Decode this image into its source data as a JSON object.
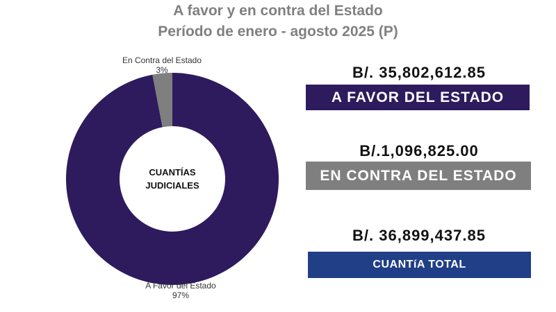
{
  "title": "A favor y en contra del Estado",
  "subtitle": "Período de enero - agosto 2025 (P)",
  "center_label_line1": "CUANTÍAS",
  "center_label_line2": "JUDICIALES",
  "cards": {
    "favor": {
      "amount": "B/. 35,802,612.85",
      "label": "A FAVOR DEL ESTADO"
    },
    "contra": {
      "amount": "B/.1,096,825.00",
      "label": "EN CONTRA DEL ESTADO"
    },
    "total": {
      "amount": "B/. 36,899,437.85",
      "label": "CUANTíA TOTAL"
    }
  },
  "colors": {
    "favor": "#2d1b5e",
    "contra": "#7f7f7f",
    "total": "#213f86"
  },
  "chart_data": {
    "type": "pie",
    "title": "A favor y en contra del Estado",
    "subtitle": "Período de enero - agosto 2025 (P)",
    "slices": [
      {
        "label": "En Contra del Estado",
        "value": 3,
        "display": "3%",
        "color": "#7f7f7f"
      },
      {
        "label": "A Favor del Estado",
        "value": 97,
        "display": "97%",
        "color": "#2d1b5e"
      }
    ]
  }
}
